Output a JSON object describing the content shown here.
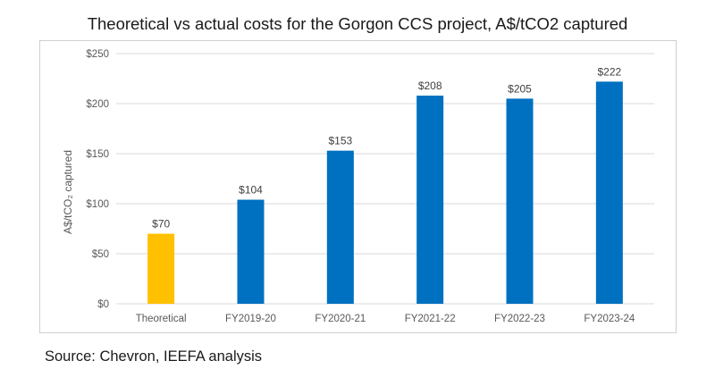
{
  "title": "Theoretical vs actual costs for the Gorgon CCS project, A$/tCO2 captured",
  "source": "Source: Chevron, IEEFA analysis",
  "chart_data": {
    "type": "bar",
    "categories": [
      "Theoretical",
      "FY2019-20",
      "FY2020-21",
      "FY2021-22",
      "FY2022-23",
      "FY2023-24"
    ],
    "values": [
      70,
      104,
      153,
      208,
      205,
      222
    ],
    "data_labels": [
      "$70",
      "$104",
      "$153",
      "$208",
      "$205",
      "$222"
    ],
    "bar_colors": [
      "#FFC000",
      "#0070C0",
      "#0070C0",
      "#0070C0",
      "#0070C0",
      "#0070C0"
    ],
    "ylabel": "A$/tCO₂ captured",
    "ylim": [
      0,
      250
    ],
    "yticks": [
      0,
      50,
      100,
      150,
      200,
      250
    ],
    "ytick_labels": [
      "$0",
      "$50",
      "$100",
      "$150",
      "$200",
      "$250"
    ],
    "grid": true,
    "gridline_color": "#d9d9d9",
    "legend": "none"
  }
}
